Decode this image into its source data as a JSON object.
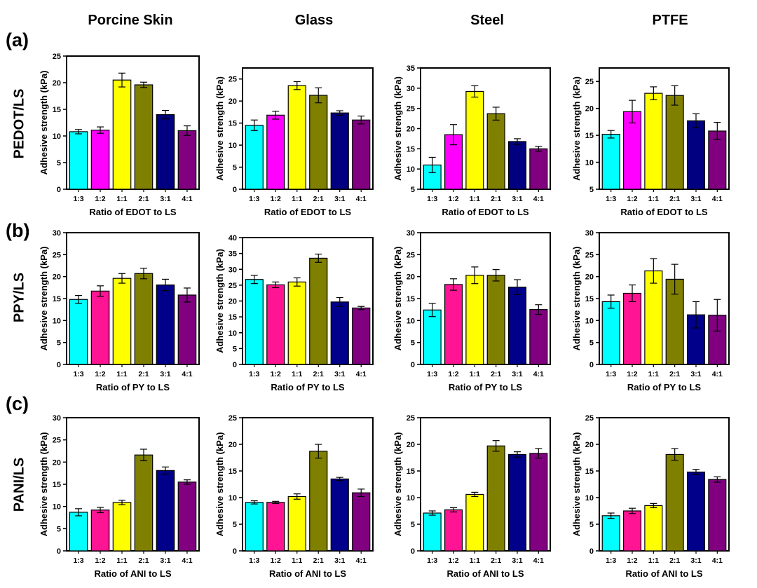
{
  "column_titles": [
    "Porcine Skin",
    "Glass",
    "Steel",
    "PTFE"
  ],
  "panel_labels": [
    "(a)",
    "(b)",
    "(c)"
  ],
  "row_labels": [
    "PEDOT/LS",
    "PPY/LS",
    "PANI/LS"
  ],
  "colors": [
    "#00ffff",
    "#ff00ff",
    "#ffff00",
    "#808000",
    "#000080",
    "#800080"
  ],
  "colors_row_bc": [
    "#00ffff",
    "#ff1493",
    "#ffff00",
    "#808000",
    "#00008b",
    "#800080"
  ],
  "chart_data": [
    {
      "type": "bar",
      "row": 0,
      "col": 0,
      "categories": [
        "1:3",
        "1:2",
        "1:1",
        "2:1",
        "3:1",
        "4:1"
      ],
      "values": [
        10.8,
        11.1,
        20.5,
        19.6,
        14.0,
        11.0
      ],
      "errors": [
        0.4,
        0.6,
        1.3,
        0.5,
        0.8,
        0.9
      ],
      "xlabel": "Ratio of EDOT to LS",
      "ylabel": "Adhesive strength (kPa)",
      "ylim": [
        0,
        25
      ],
      "yticks": [
        0,
        5,
        10,
        15,
        20,
        25
      ]
    },
    {
      "type": "bar",
      "row": 0,
      "col": 1,
      "categories": [
        "1:3",
        "1:2",
        "1:1",
        "2:1",
        "3:1",
        "4:1"
      ],
      "values": [
        14.5,
        16.8,
        23.5,
        21.3,
        17.3,
        15.7
      ],
      "errors": [
        1.2,
        0.9,
        0.9,
        1.7,
        0.5,
        0.9
      ],
      "xlabel": "Ratio of EDOT to LS",
      "ylabel": "Adhesive strength (kPa)",
      "ylim": [
        0,
        27.5
      ],
      "yticks": [
        0,
        5,
        10,
        15,
        20,
        25
      ]
    },
    {
      "type": "bar",
      "row": 0,
      "col": 2,
      "categories": [
        "1:3",
        "1:2",
        "1:1",
        "2:1",
        "3:1",
        "4:1"
      ],
      "values": [
        11.0,
        18.5,
        29.2,
        23.7,
        16.8,
        15.0
      ],
      "errors": [
        1.9,
        2.5,
        1.4,
        1.6,
        0.7,
        0.6
      ],
      "xlabel": "Ratio of EDOT to LS",
      "ylabel": "Adhesive strength (kPa)",
      "ylim": [
        5,
        35
      ],
      "yticks": [
        5,
        10,
        15,
        20,
        25,
        30,
        35
      ]
    },
    {
      "type": "bar",
      "row": 0,
      "col": 3,
      "categories": [
        "1:3",
        "1:2",
        "1:1",
        "2:1",
        "3:1",
        "4:1"
      ],
      "values": [
        15.2,
        19.4,
        22.8,
        22.4,
        17.7,
        15.8
      ],
      "errors": [
        0.7,
        2.1,
        1.2,
        1.8,
        1.3,
        1.6
      ],
      "xlabel": "Ratio of EDOT to LS",
      "ylabel": "Adhesive strength (kPa)",
      "ylim": [
        5,
        27.5
      ],
      "yticks": [
        5,
        10,
        15,
        20,
        25
      ]
    },
    {
      "type": "bar",
      "row": 1,
      "col": 0,
      "categories": [
        "1:3",
        "1:2",
        "1:1",
        "2:1",
        "3:1",
        "4:1"
      ],
      "values": [
        14.8,
        16.7,
        19.6,
        20.7,
        18.1,
        15.8
      ],
      "errors": [
        0.9,
        1.2,
        1.1,
        1.2,
        1.3,
        1.6
      ],
      "xlabel": "Ratio of PY to LS",
      "ylabel": "Adhesive strength (kPa)",
      "ylim": [
        0,
        30
      ],
      "yticks": [
        0,
        5,
        10,
        15,
        20,
        25,
        30
      ]
    },
    {
      "type": "bar",
      "row": 1,
      "col": 1,
      "categories": [
        "1:3",
        "1:2",
        "1:1",
        "2:1",
        "3:1",
        "4:1"
      ],
      "values": [
        26.8,
        25.1,
        26.0,
        33.5,
        19.7,
        17.8
      ],
      "errors": [
        1.3,
        0.9,
        1.3,
        1.3,
        1.4,
        0.5
      ],
      "xlabel": "Ratio of PY to LS",
      "ylabel": "Adhesive strength (kPa)",
      "ylim": [
        0,
        40
      ],
      "yticks": [
        0,
        5,
        10,
        15,
        20,
        25,
        30,
        35,
        40
      ]
    },
    {
      "type": "bar",
      "row": 1,
      "col": 2,
      "categories": [
        "1:3",
        "1:2",
        "1:1",
        "2:1",
        "3:1",
        "4:1"
      ],
      "values": [
        12.4,
        18.2,
        20.3,
        20.3,
        17.6,
        12.5
      ],
      "errors": [
        1.5,
        1.3,
        1.9,
        1.3,
        1.7,
        1.1
      ],
      "xlabel": "Ratio of PY to LS",
      "ylabel": "Adhesive strength (kPa)",
      "ylim": [
        0,
        30
      ],
      "yticks": [
        0,
        5,
        10,
        15,
        20,
        25,
        30
      ]
    },
    {
      "type": "bar",
      "row": 1,
      "col": 3,
      "categories": [
        "1:3",
        "1:2",
        "1:1",
        "2:1",
        "3:1",
        "4:1"
      ],
      "values": [
        14.3,
        16.2,
        21.3,
        19.4,
        11.3,
        11.2
      ],
      "errors": [
        1.5,
        1.9,
        2.8,
        3.4,
        3.0,
        3.6
      ],
      "xlabel": "Ratio of PY to LS",
      "ylabel": "Adhesive strength (kPa)",
      "ylim": [
        0,
        30
      ],
      "yticks": [
        0,
        5,
        10,
        15,
        20,
        25,
        30
      ]
    },
    {
      "type": "bar",
      "row": 2,
      "col": 0,
      "categories": [
        "1:3",
        "1:2",
        "1:1",
        "2:1",
        "3:1",
        "4:1"
      ],
      "values": [
        8.7,
        9.2,
        10.9,
        21.6,
        18.1,
        15.5
      ],
      "errors": [
        0.8,
        0.6,
        0.5,
        1.3,
        0.8,
        0.5
      ],
      "xlabel": "Ratio of ANI to LS",
      "ylabel": "Adhesive strength (kPa)",
      "ylim": [
        0,
        30
      ],
      "yticks": [
        0,
        5,
        10,
        15,
        20,
        25,
        30
      ]
    },
    {
      "type": "bar",
      "row": 2,
      "col": 1,
      "categories": [
        "1:3",
        "1:2",
        "1:1",
        "2:1",
        "3:1",
        "4:1"
      ],
      "values": [
        9.1,
        9.1,
        10.2,
        18.7,
        13.5,
        10.9
      ],
      "errors": [
        0.3,
        0.2,
        0.5,
        1.3,
        0.3,
        0.7
      ],
      "xlabel": "Ratio of ANI to LS",
      "ylabel": "Adhesive strength (kPa)",
      "ylim": [
        0,
        25
      ],
      "yticks": [
        0,
        5,
        10,
        15,
        20,
        25
      ]
    },
    {
      "type": "bar",
      "row": 2,
      "col": 2,
      "categories": [
        "1:3",
        "1:2",
        "1:1",
        "2:1",
        "3:1",
        "4:1"
      ],
      "values": [
        7.1,
        7.7,
        10.6,
        19.7,
        18.1,
        18.3
      ],
      "errors": [
        0.4,
        0.4,
        0.4,
        1.0,
        0.5,
        0.9
      ],
      "xlabel": "Ratio of ANI to LS",
      "ylabel": "Adhesive strength (kPa)",
      "ylim": [
        0,
        25
      ],
      "yticks": [
        0,
        5,
        10,
        15,
        20,
        25
      ]
    },
    {
      "type": "bar",
      "row": 2,
      "col": 3,
      "categories": [
        "1:3",
        "1:2",
        "1:1",
        "2:1",
        "3:1",
        "4:1"
      ],
      "values": [
        6.6,
        7.5,
        8.5,
        18.1,
        14.8,
        13.4
      ],
      "errors": [
        0.5,
        0.5,
        0.4,
        1.1,
        0.5,
        0.5
      ],
      "xlabel": "Ratio of ANI to LS",
      "ylabel": "Adhesive strength (kPa)",
      "ylim": [
        0,
        25
      ],
      "yticks": [
        0,
        5,
        10,
        15,
        20,
        25
      ]
    }
  ]
}
